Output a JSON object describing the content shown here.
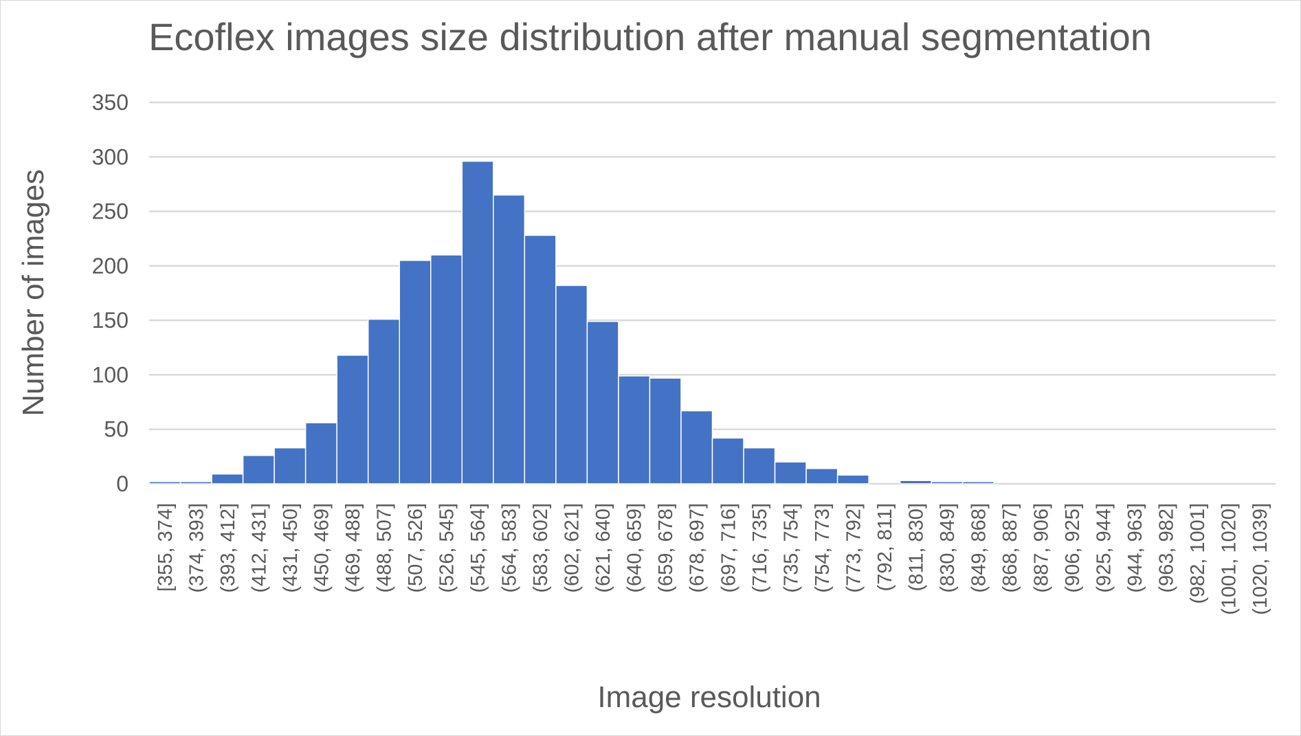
{
  "chart_data": {
    "type": "bar",
    "title": "Ecoflex images size distribution after manual segmentation",
    "xlabel": "Image resolution",
    "ylabel": "Number of images",
    "ylim": [
      0,
      350
    ],
    "yticks": [
      0,
      50,
      100,
      150,
      200,
      250,
      300,
      350
    ],
    "grid": true,
    "legend": "none",
    "bar_color": "#4472c4",
    "categories": [
      "[355, 374]",
      "(374, 393]",
      "(393, 412]",
      "(412, 431]",
      "(431, 450]",
      "(450, 469]",
      "(469, 488]",
      "(488, 507]",
      "(507, 526]",
      "(526, 545]",
      "(545, 564]",
      "(564, 583]",
      "(583, 602]",
      "(602, 621]",
      "(621, 640]",
      "(640, 659]",
      "(659, 678]",
      "(678, 697]",
      "(697, 716]",
      "(716, 735]",
      "(735, 754]",
      "(754, 773]",
      "(773, 792]",
      "(792, 811]",
      "(811, 830]",
      "(830, 849]",
      "(849, 868]",
      "(868, 887]",
      "(887, 906]",
      "(906, 925]",
      "(925, 944]",
      "(944, 963]",
      "(963, 982]",
      "(982, 1001]",
      "(1001, 1020]",
      "(1020, 1039]"
    ],
    "values": [
      2,
      2,
      9,
      26,
      33,
      56,
      118,
      151,
      205,
      210,
      296,
      265,
      228,
      182,
      149,
      99,
      97,
      67,
      42,
      33,
      20,
      14,
      8,
      0,
      3,
      2,
      2,
      0,
      0,
      0,
      0,
      0,
      0,
      0,
      0,
      0
    ]
  }
}
